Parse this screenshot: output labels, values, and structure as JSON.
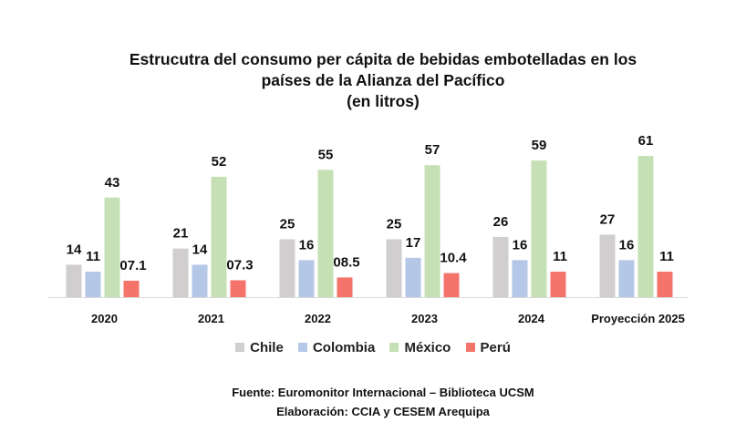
{
  "chart_data": {
    "type": "bar",
    "title": [
      "Estrucutra del consumo per cápita de bebidas embotelladas en los",
      "países de la Alianza del Pacífico",
      "(en litros)"
    ],
    "xlabel": "",
    "ylabel": "",
    "categories": [
      "2020",
      "2021",
      "2022",
      "2023",
      "2024",
      "Proyección 2025"
    ],
    "series": [
      {
        "name": "Chile",
        "color": "#d0cece",
        "values": [
          14,
          21,
          25,
          25,
          26,
          27
        ],
        "labels": [
          "14",
          "21",
          "25",
          "25",
          "26",
          "27"
        ]
      },
      {
        "name": "Colombia",
        "color": "#b4c7e7",
        "values": [
          11,
          14,
          16,
          17,
          16,
          16
        ],
        "labels": [
          "11",
          "14",
          "16",
          "17",
          "16",
          "16"
        ]
      },
      {
        "name": "México",
        "color": "#c5e0b4",
        "values": [
          43,
          52,
          55,
          57,
          59,
          61
        ],
        "labels": [
          "43",
          "52",
          "55",
          "57",
          "59",
          "61"
        ]
      },
      {
        "name": "Perú",
        "color": "#f4736a",
        "values": [
          7.1,
          7.3,
          8.5,
          10.4,
          11,
          11
        ],
        "labels": [
          "07.1",
          "07.3",
          "08.5",
          "10.4",
          "11",
          "11"
        ]
      }
    ],
    "ylim": [
      0,
      65
    ],
    "grid": false,
    "y_axis_visible": false,
    "legend_position": "bottom"
  },
  "footer": {
    "source": "Fuente: Euromonitor Internacional – Biblioteca UCSM",
    "credits": "Elaboración: CCIA y CESEM Arequipa"
  }
}
